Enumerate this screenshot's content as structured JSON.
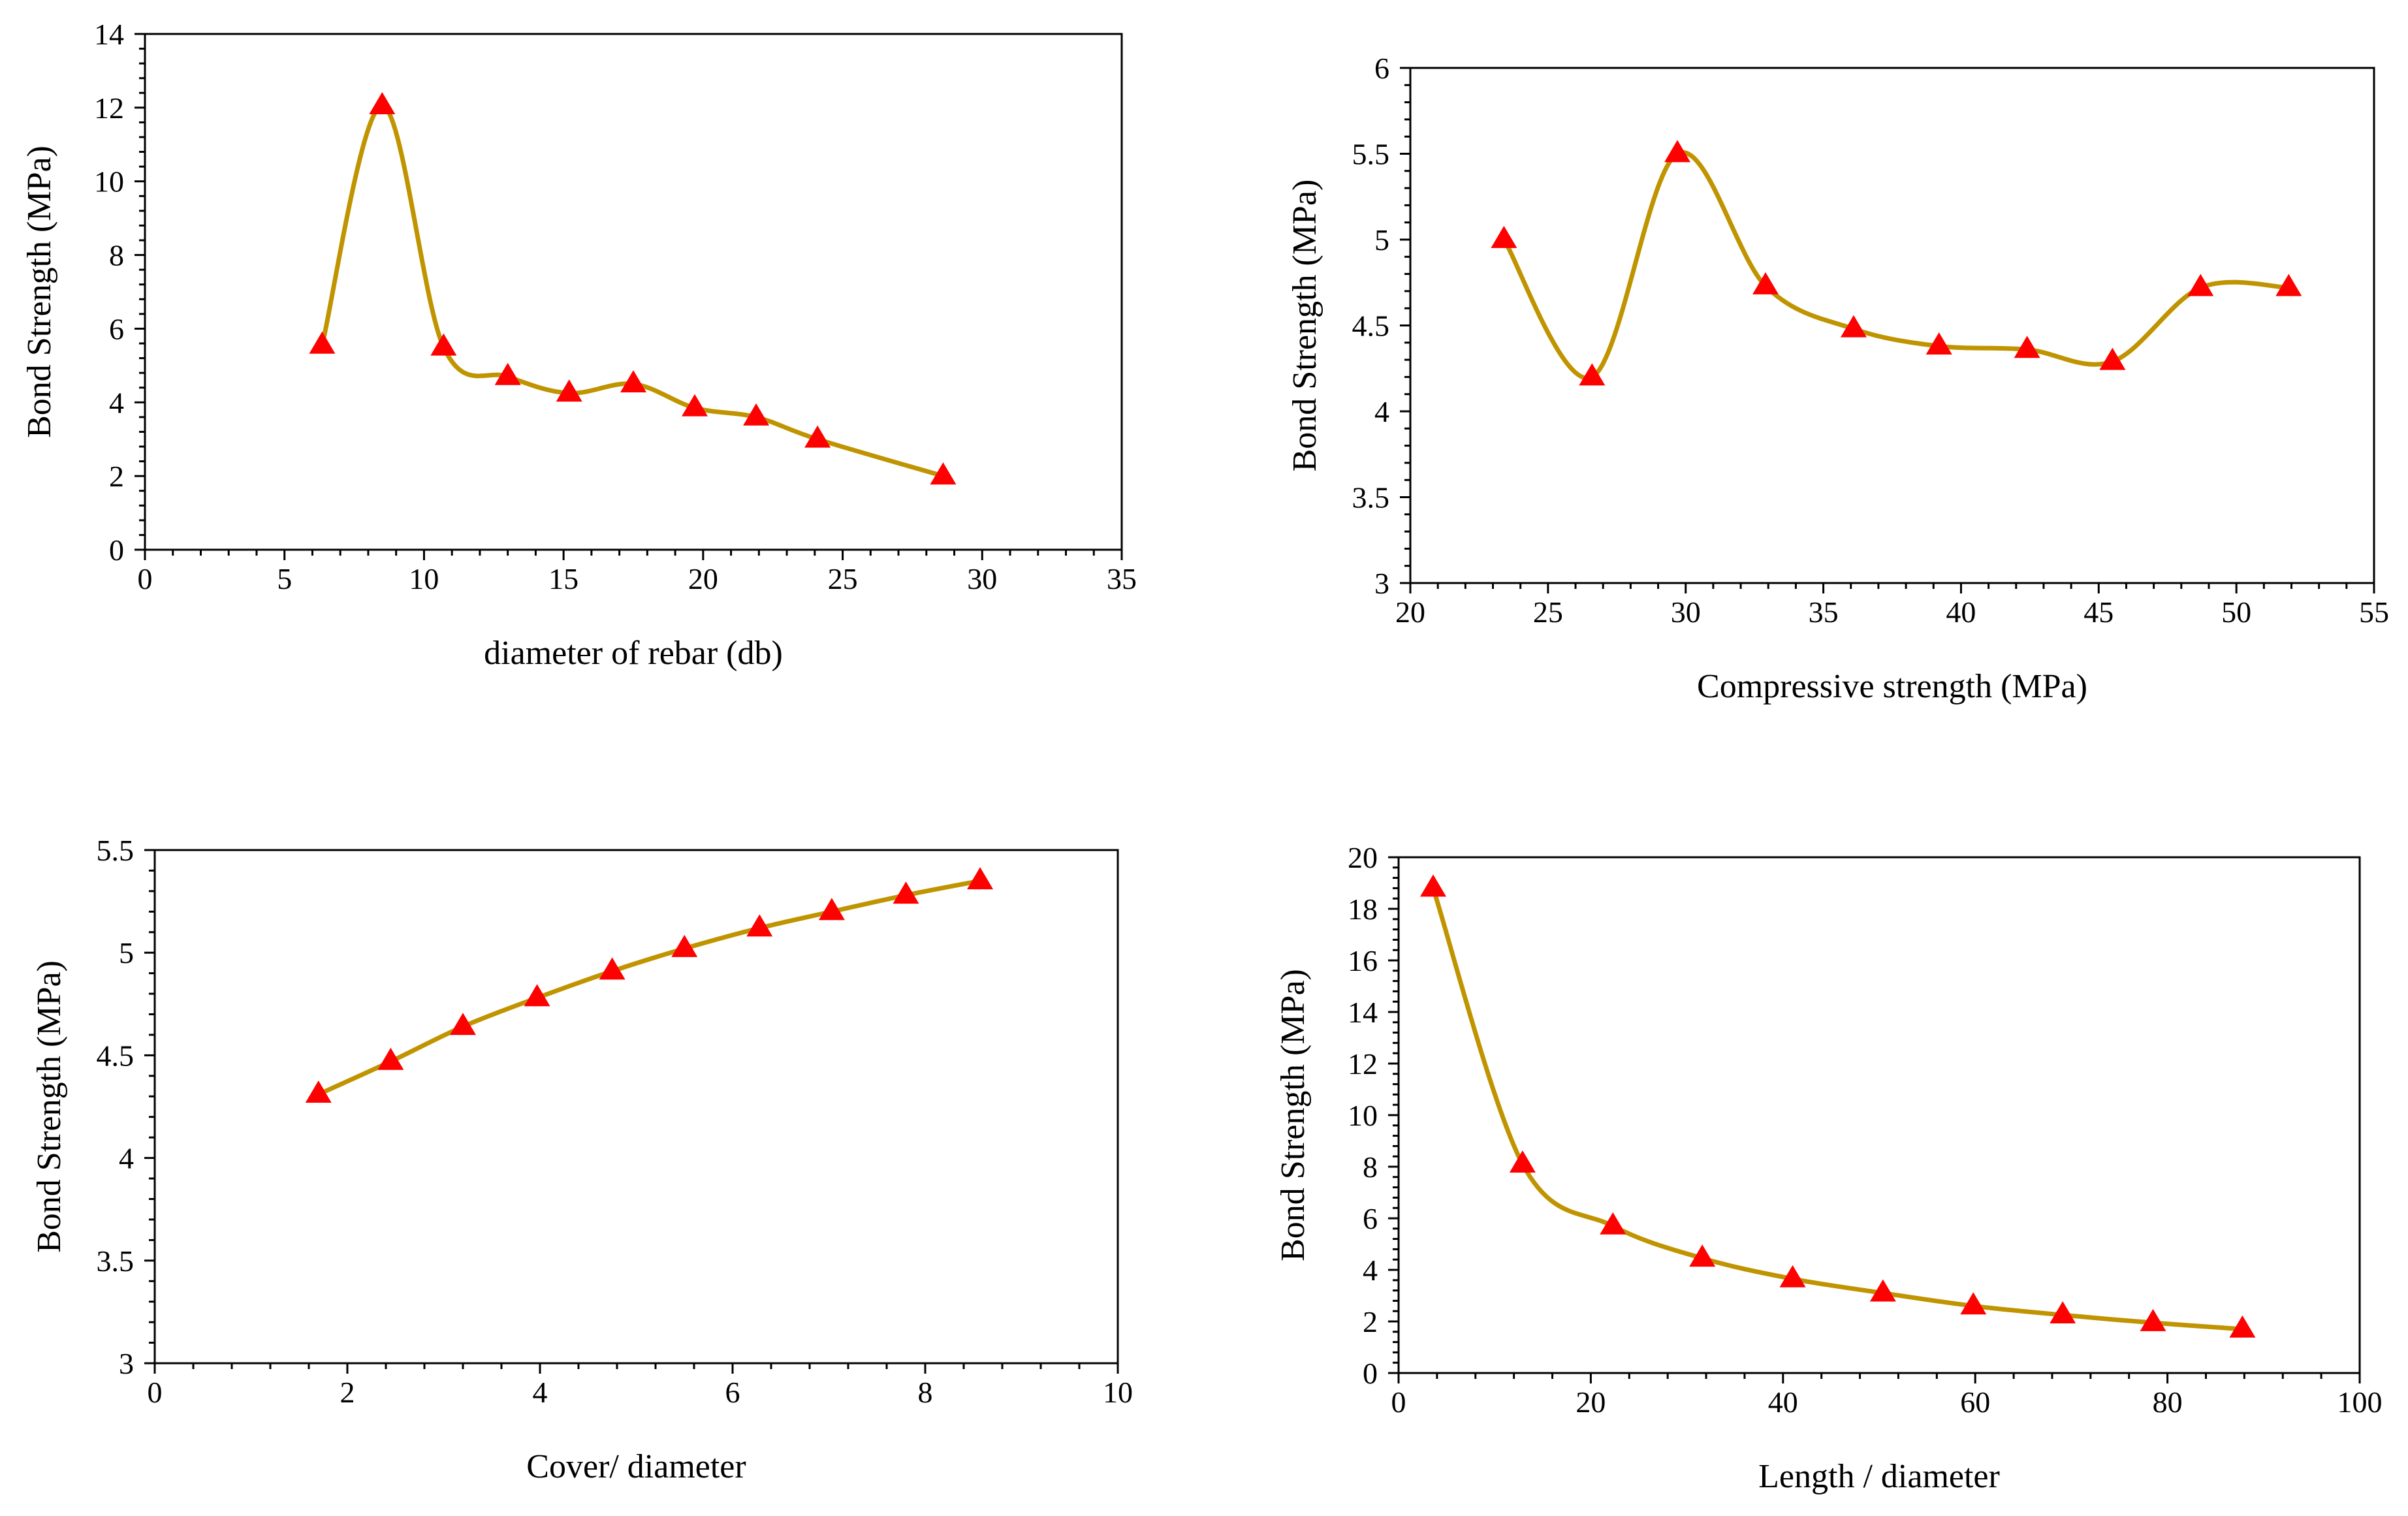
{
  "colors": {
    "curve": "#c09400",
    "marker": "#ff0000",
    "axis": "#000000"
  },
  "chart_data": [
    {
      "type": "line",
      "marker": "triangle",
      "smooth": true,
      "xlabel": "diameter of rebar (db)",
      "ylabel": "Bond Strength (MPa)",
      "xlim": [
        0,
        35
      ],
      "ylim": [
        0,
        14
      ],
      "xticks": [
        0,
        5,
        10,
        15,
        20,
        25,
        30,
        35
      ],
      "yticks": [
        0,
        2,
        4,
        6,
        8,
        10,
        12,
        14
      ],
      "xtick_labels": [
        "0",
        "5",
        "10",
        "15",
        "20",
        "25",
        "30",
        "35"
      ],
      "ytick_labels": [
        "0",
        "2",
        "4",
        "6",
        "8",
        "10",
        "12",
        "14"
      ],
      "x": [
        6.35,
        8.5,
        10.7,
        13.0,
        15.2,
        17.5,
        19.7,
        21.9,
        24.1,
        28.6
      ],
      "y": [
        5.55,
        12.05,
        5.5,
        4.7,
        4.25,
        4.5,
        3.85,
        3.6,
        3.0,
        2.0
      ]
    },
    {
      "type": "line",
      "marker": "triangle",
      "smooth": true,
      "xlabel": "Compressive strength (MPa)",
      "ylabel": "Bond Strength (MPa)",
      "xlim": [
        20,
        55
      ],
      "ylim": [
        3,
        6
      ],
      "xticks": [
        20,
        25,
        30,
        35,
        40,
        45,
        50,
        55
      ],
      "yticks": [
        3,
        3.5,
        4,
        4.5,
        5,
        5.5,
        6
      ],
      "xtick_labels": [
        "20",
        "25",
        "30",
        "35",
        "40",
        "45",
        "50",
        "55"
      ],
      "ytick_labels": [
        "3",
        "3.5",
        "4",
        "4.5",
        "5",
        "5.5",
        "6"
      ],
      "x": [
        23.4,
        26.6,
        29.7,
        32.9,
        36.1,
        39.2,
        42.4,
        45.5,
        48.7,
        51.9
      ],
      "y": [
        5.0,
        4.2,
        5.5,
        4.73,
        4.48,
        4.38,
        4.36,
        4.29,
        4.72,
        4.72
      ]
    },
    {
      "type": "line",
      "marker": "triangle",
      "smooth": true,
      "xlabel": "Cover/ diameter",
      "ylabel": "Bond Strength (MPa)",
      "xlim": [
        0,
        10
      ],
      "ylim": [
        3,
        5.5
      ],
      "xticks": [
        0,
        2,
        4,
        6,
        8,
        10
      ],
      "yticks": [
        3,
        3.5,
        4,
        4.5,
        5,
        5.5
      ],
      "xtick_labels": [
        "0",
        "2",
        "4",
        "6",
        "8",
        "10"
      ],
      "ytick_labels": [
        "3",
        "3.5",
        "4",
        "4.5",
        "5",
        "5.5"
      ],
      "x": [
        1.7,
        2.45,
        3.2,
        3.97,
        4.75,
        5.5,
        6.28,
        7.03,
        7.8,
        8.57
      ],
      "y": [
        4.31,
        4.47,
        4.64,
        4.78,
        4.91,
        5.02,
        5.12,
        5.2,
        5.28,
        5.35
      ]
    },
    {
      "type": "line",
      "marker": "triangle",
      "smooth": true,
      "xlabel": "Length / diameter",
      "ylabel": "Bond Strength (MPa)",
      "xlim": [
        0,
        100
      ],
      "ylim": [
        0,
        20
      ],
      "xticks": [
        0,
        20,
        40,
        60,
        80,
        100
      ],
      "yticks": [
        0,
        2,
        4,
        6,
        8,
        10,
        12,
        14,
        16,
        18,
        20
      ],
      "xtick_labels": [
        "0",
        "20",
        "40",
        "60",
        "80",
        "100"
      ],
      "ytick_labels": [
        "0",
        "2",
        "4",
        "6",
        "8",
        "10",
        "12",
        "14",
        "16",
        "18",
        "20"
      ],
      "x": [
        3.6,
        12.9,
        22.3,
        31.6,
        41.0,
        50.4,
        59.8,
        69.1,
        78.5,
        87.8
      ],
      "y": [
        18.8,
        8.1,
        5.7,
        4.45,
        3.65,
        3.1,
        2.6,
        2.25,
        1.95,
        1.7
      ]
    }
  ]
}
